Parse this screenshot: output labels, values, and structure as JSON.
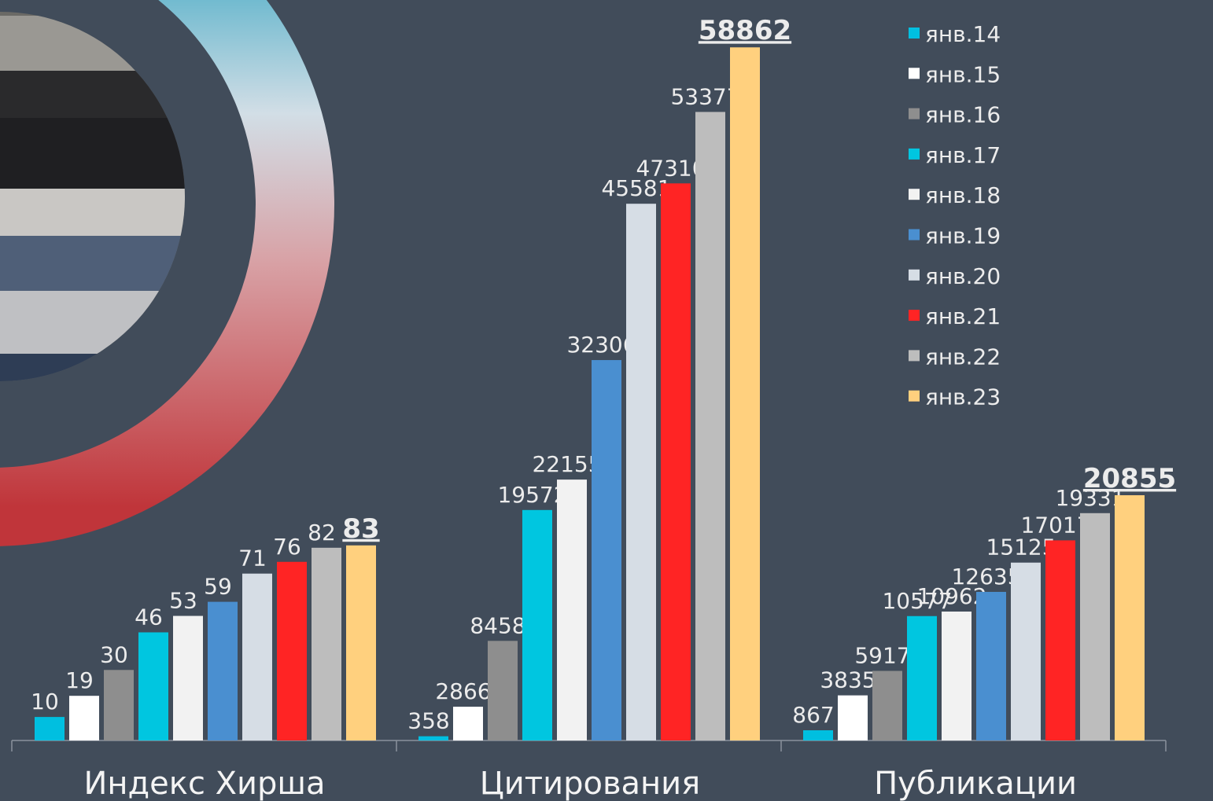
{
  "chart_data": {
    "type": "bar",
    "categories": [
      "Индекс Хирша",
      "Цитирования",
      "Публикации"
    ],
    "legend": "top-right",
    "series": [
      {
        "name": "янв.14",
        "color": "#00bfe0",
        "values": [
          10,
          358,
          867
        ]
      },
      {
        "name": "янв.15",
        "color": "#ffffff",
        "values": [
          19,
          2866,
          3835
        ]
      },
      {
        "name": "янв.16",
        "color": "#8e8e8e",
        "values": [
          30,
          8458,
          5917
        ]
      },
      {
        "name": "янв.17",
        "color": "#00c6e0",
        "values": [
          46,
          19572,
          10577
        ]
      },
      {
        "name": "янв.18",
        "color": "#f2f2f2",
        "values": [
          53,
          22155,
          10962
        ]
      },
      {
        "name": "янв.19",
        "color": "#4a8fd0",
        "values": [
          59,
          32306,
          12635
        ]
      },
      {
        "name": "янв.20",
        "color": "#d6dde5",
        "values": [
          71,
          45581,
          15125
        ]
      },
      {
        "name": "янв.21",
        "color": "#ff2424",
        "values": [
          76,
          47310,
          17017
        ]
      },
      {
        "name": "янв.22",
        "color": "#bdbdbd",
        "values": [
          82,
          53377,
          19331
        ]
      },
      {
        "name": "янв.23",
        "color": "#ffd07e",
        "values": [
          83,
          58862,
          20855
        ]
      }
    ]
  }
}
